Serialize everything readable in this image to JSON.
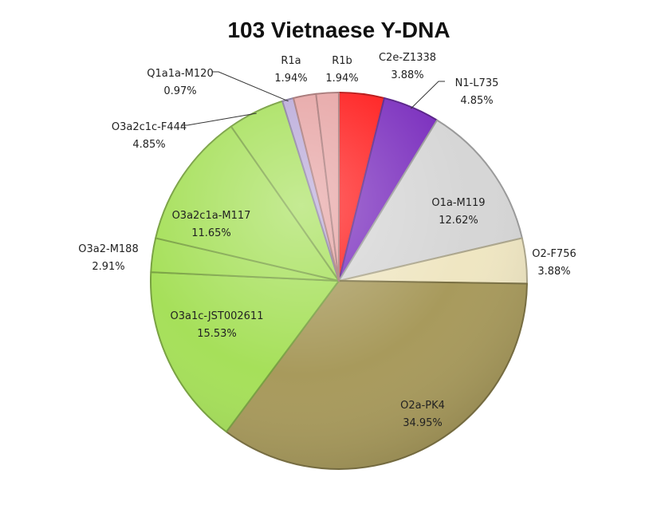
{
  "chart_data": {
    "type": "pie",
    "title": "103 Vietnaese Y-DNA",
    "slices": [
      {
        "label": "C2e-Z1338",
        "percent_label": "3.88%",
        "value": 3.88,
        "color": "#ff1a1a"
      },
      {
        "label": "N1-L735",
        "percent_label": "4.85%",
        "value": 4.85,
        "color": "#7b2fbe"
      },
      {
        "label": "O1a-M119",
        "percent_label": "12.62%",
        "value": 12.62,
        "color": "#d6d6d6"
      },
      {
        "label": "O2-F756",
        "percent_label": "3.88%",
        "value": 3.88,
        "color": "#efe6c2"
      },
      {
        "label": "O2a-PK4",
        "percent_label": "34.95%",
        "value": 34.95,
        "color": "#a89a5c"
      },
      {
        "label": "O3a1c-JST002611",
        "percent_label": "15.53%",
        "value": 15.53,
        "color": "#a6e05a"
      },
      {
        "label": "O3a2-M188",
        "percent_label": "2.91%",
        "value": 2.91,
        "color": "#a6e05a"
      },
      {
        "label": "O3a2c1a-M117",
        "percent_label": "11.65%",
        "value": 11.65,
        "color": "#a6e05a"
      },
      {
        "label": "O3a2c1c-F444",
        "percent_label": "4.85%",
        "value": 4.85,
        "color": "#a6e05a"
      },
      {
        "label": "Q1a1a-M120",
        "percent_label": "0.97%",
        "value": 0.97,
        "color": "#b9a9d9"
      },
      {
        "label": "R1a",
        "percent_label": "1.94%",
        "value": 1.94,
        "color": "#e6a3a3"
      },
      {
        "label": "R1b",
        "percent_label": "1.94%",
        "value": 1.94,
        "color": "#e6a3a3"
      }
    ]
  }
}
